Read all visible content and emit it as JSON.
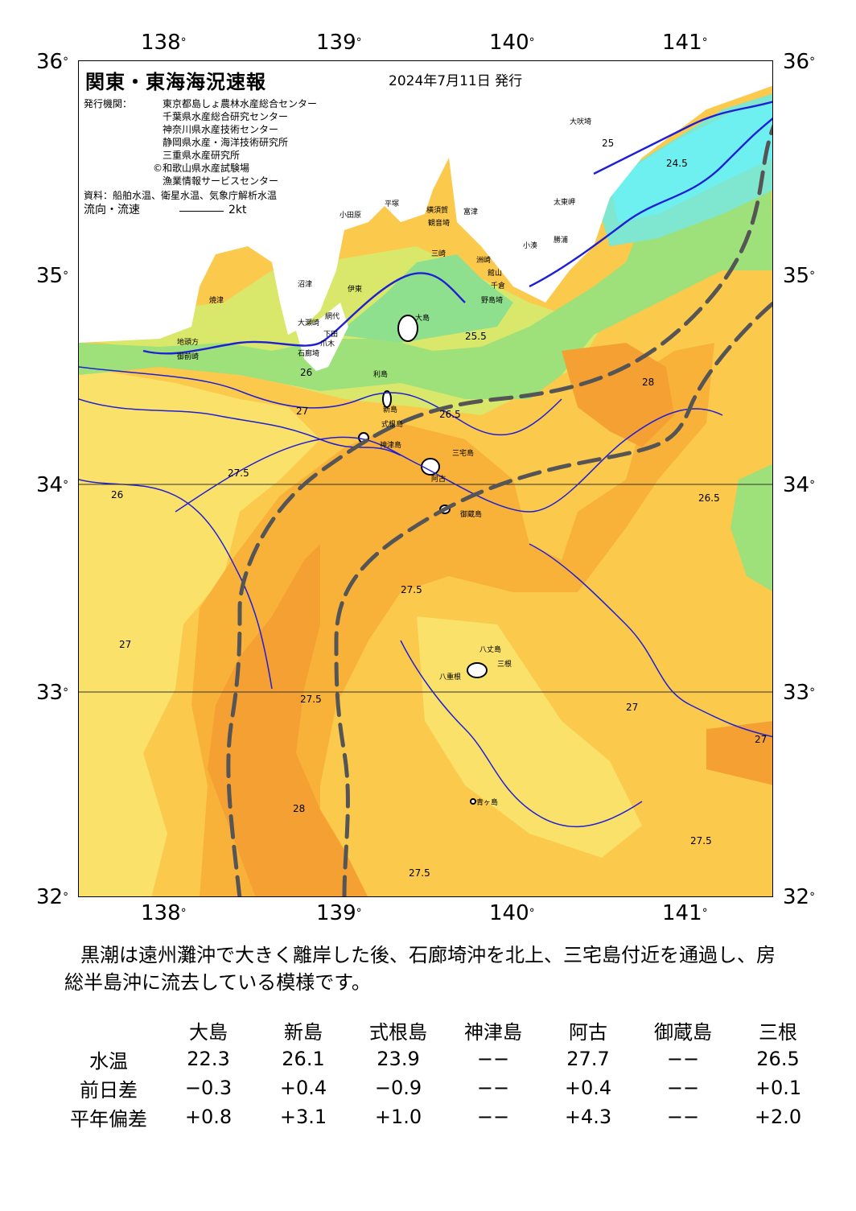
{
  "axes": {
    "top_lon_labels": [
      "138",
      "139",
      "140",
      "141"
    ],
    "bottom_lon_labels": [
      "138",
      "139",
      "140",
      "141"
    ],
    "left_lat_labels": [
      "36",
      "35",
      "34",
      "33",
      "32"
    ],
    "right_lat_labels": [
      "36",
      "35",
      "34",
      "33",
      "32"
    ],
    "degree_symbol": "°"
  },
  "header": {
    "title": "関東・東海海況速報",
    "date": "2024年7月11日 発行",
    "publisher_label": "発行機関：",
    "publishers": [
      "東京都島しょ農林水産総合センター",
      "千葉県水産総合研究センター",
      "神奈川県水産技術センター",
      "静岡県水産・海洋技術研究所",
      "三重県水産研究所",
      "©和歌山県水産試験場",
      "漁業情報サービスセンター"
    ],
    "source": "資料：船舶水温、衛星水温、気象庁解析水温",
    "flow_label": "流向・流速",
    "flow_scale": "2kt"
  },
  "map": {
    "colors": {
      "land": "#ffffff",
      "sst_28": "#f5a033",
      "sst_27_5": "#f8b23a",
      "sst_27": "#fbc94c",
      "sst_26_5": "#fae16a",
      "sst_26": "#d9e86a",
      "sst_25_5": "#9ee07a",
      "sst_25": "#8fe08e",
      "sst_24_5": "#7fe6cf",
      "sst_24": "#6ff0f0",
      "isotherm": "#1f1fd6",
      "kuroshio_path": "#555555",
      "grid": "#333333"
    },
    "place_labels": [
      "大吠埼",
      "太東岬",
      "勝浦",
      "野島埼",
      "館山",
      "千倉",
      "小湊",
      "洲崎",
      "富津",
      "観音埼",
      "横須賀",
      "三崎",
      "平塚",
      "小田原",
      "伊東",
      "沼津",
      "焼津",
      "御前崎",
      "地頭方",
      "大瀬崎",
      "石廊埼",
      "下田",
      "爪木",
      "大島",
      "利島",
      "新島",
      "式根島",
      "神津島",
      "三宅島",
      "阿古",
      "御蔵島",
      "八丈島",
      "三根",
      "八重根",
      "青ヶ島",
      "網代"
    ],
    "isotherm_labels": [
      "24.5",
      "25",
      "25.5",
      "26",
      "26.5",
      "27",
      "27.5",
      "28"
    ]
  },
  "summary": "黒潮は遠州灘沖で大きく離岸した後、石廊埼沖を北上、三宅島付近を通過し、房総半島沖に流去している模様です。",
  "table": {
    "stations": [
      "大島",
      "新島",
      "式根島",
      "神津島",
      "阿古",
      "御蔵島",
      "三根"
    ],
    "rows": [
      {
        "label": "水温",
        "values": [
          "22.3",
          "26.1",
          "23.9",
          "−−",
          "27.7",
          "−−",
          "26.5"
        ]
      },
      {
        "label": "前日差",
        "values": [
          "−0.3",
          "+0.4",
          "−0.9",
          "−−",
          "+0.4",
          "−−",
          "+0.1"
        ]
      },
      {
        "label": "平年偏差",
        "values": [
          "+0.8",
          "+3.1",
          "+1.0",
          "−−",
          "+4.3",
          "−−",
          "+2.0"
        ]
      }
    ]
  }
}
